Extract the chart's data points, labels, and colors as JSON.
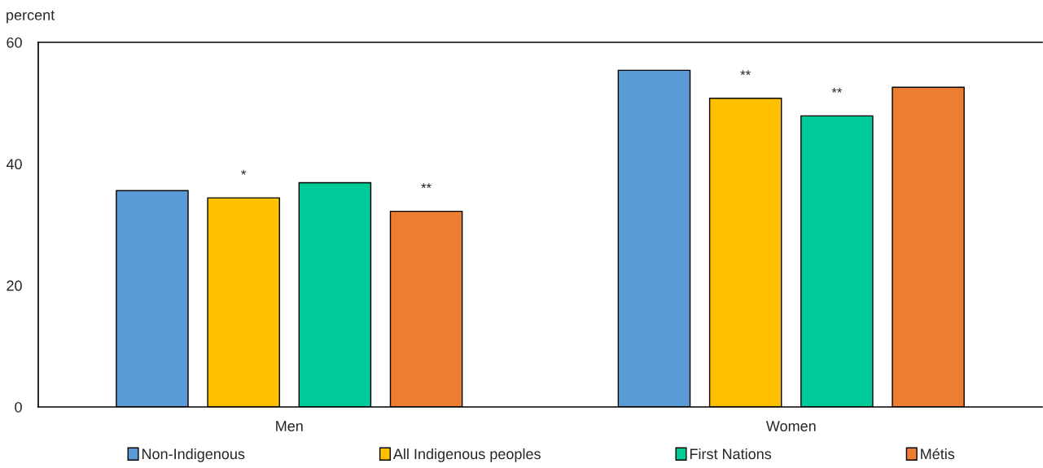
{
  "chart_data": {
    "type": "bar",
    "ylabel": "percent",
    "categories": [
      "Men",
      "Women"
    ],
    "series": [
      {
        "name": "Non-Indigenous",
        "color": "#5b9bd5",
        "values": [
          35.6,
          55.4
        ]
      },
      {
        "name": "All Indigenous peoples",
        "color": "#ffc000",
        "values": [
          34.4,
          50.8
        ],
        "value_labels": [
          "*",
          "**"
        ]
      },
      {
        "name": "First Nations",
        "color": "#00cc99",
        "values": [
          36.9,
          47.9
        ],
        "value_labels": [
          null,
          "**"
        ]
      },
      {
        "name": "Métis",
        "color": "#ed7d31",
        "values": [
          32.2,
          52.6
        ],
        "value_labels": [
          "**",
          null
        ]
      }
    ],
    "ylim": [
      0,
      60
    ],
    "yticks": [
      0,
      20,
      40,
      60
    ],
    "grid": false,
    "legend": "bottom"
  }
}
